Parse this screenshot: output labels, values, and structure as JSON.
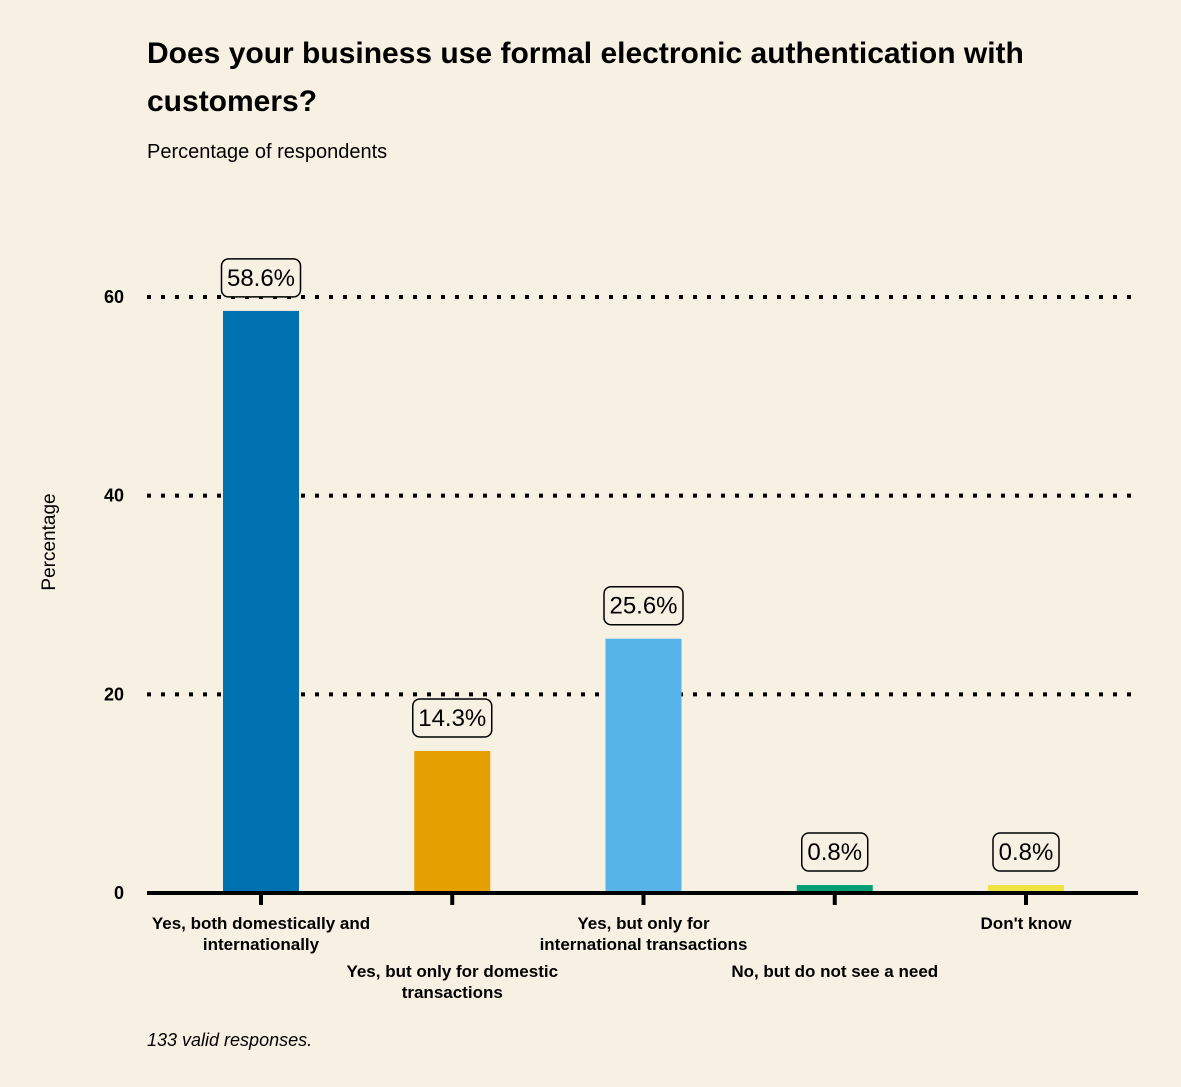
{
  "chart_data": {
    "type": "bar",
    "title": "Does your business use formal electronic authentication with customers?",
    "subtitle": "Percentage of respondents",
    "ylabel": "Percentage",
    "xlabel": "",
    "ylim": [
      0,
      60
    ],
    "yticks": [
      0,
      20,
      40,
      60
    ],
    "grid": "dotted horizontal",
    "categories": [
      "Yes, both domestically and internationally",
      "Yes, but only for domestic transactions",
      "Yes, but only for international transactions",
      "No, but do not see a need",
      "Don't know"
    ],
    "values": [
      58.6,
      14.3,
      25.6,
      0.8,
      0.8
    ],
    "data_labels": [
      "58.6%",
      "14.3%",
      "25.6%",
      "0.8%",
      "0.8%"
    ],
    "colors": [
      "#0072b2",
      "#e69f00",
      "#56b4e9",
      "#009e73",
      "#f0e442"
    ],
    "note": "133 valid responses."
  }
}
